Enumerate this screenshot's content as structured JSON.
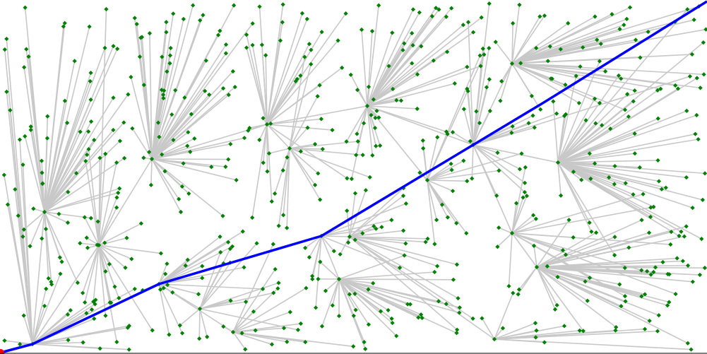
{
  "diagram": {
    "type": "tree-path-planning",
    "node_count": 620,
    "colors": {
      "edge": "#c8c8c8",
      "node": "#008000",
      "path": "#0000ff",
      "start": "#ff0000",
      "border": "#000000"
    }
  }
}
